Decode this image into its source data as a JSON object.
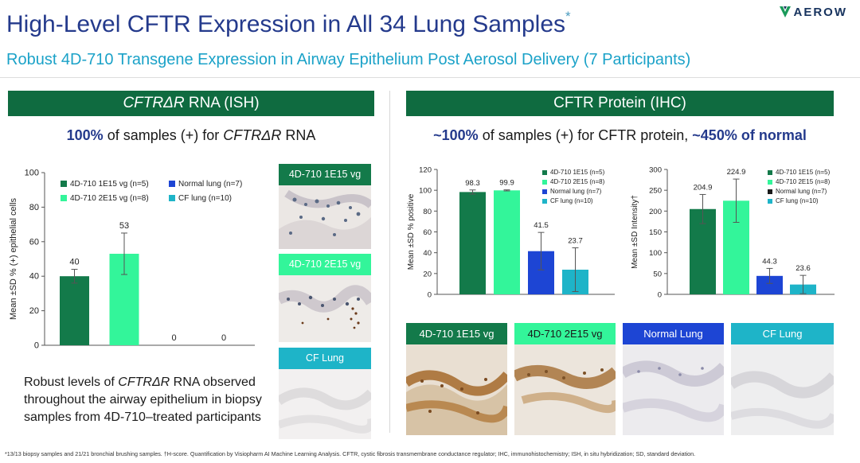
{
  "header": {
    "title": "High-Level CFTR Expression in All 34 Lung Samples",
    "title_mark": "*",
    "subtitle": "Robust 4D-710 Transgene Expression in Airway Epithelium Post Aerosol Delivery (7 Participants)",
    "logo_text": "AEROW"
  },
  "ish": {
    "header_italic": "CFTRΔR",
    "header_rest": " RNA (ISH)",
    "stat_pct": "100%",
    "stat_mid": " of samples (+) for ",
    "stat_italic": "CFTRΔR",
    "stat_end": " RNA",
    "desc_1": "Robust levels of ",
    "desc_italic": "CFTRΔR",
    "desc_2": " RNA observed throughout the airway epithelium in biopsy samples from 4D-710–treated participants",
    "tiles": [
      "4D-710 1E15 vg",
      "4D-710 2E15 vg",
      "CF Lung"
    ]
  },
  "ihc": {
    "header": "CFTR Protein (IHC)",
    "stat_pct": "~100%",
    "stat_mid": " of samples (+) for CFTR protein, ",
    "stat_hl2": "~450% of normal",
    "tiles": [
      "4D-710 1E15 vg",
      "4D-710 2E15 vg",
      "Normal Lung",
      "CF Lung"
    ]
  },
  "colors": {
    "dark_green": "#137a4a",
    "light_green": "#33f59a",
    "blue": "#1d45d4",
    "teal": "#1eb4c8",
    "header_green": "#0f6b40",
    "title_blue": "#243a8c",
    "subtitle_teal": "#1ba2c8"
  },
  "chart_data": [
    {
      "type": "bar",
      "ylabel": "Mean ±SD % (+) epithelial cells",
      "ylim": [
        0,
        100
      ],
      "yticks": [
        0,
        20,
        40,
        60,
        80,
        100
      ],
      "legend": [
        "4D-710 1E15 vg (n=5)",
        "Normal lung (n=7)",
        "4D-710 2E15 vg (n=8)",
        "CF lung (n=10)"
      ],
      "categories": [
        "4D-710 1E15 vg (n=5)",
        "4D-710 2E15 vg (n=8)",
        "Normal lung (n=7)",
        "CF lung (n=10)"
      ],
      "values": [
        40,
        53,
        0,
        0
      ],
      "labels": [
        "40",
        "53",
        "0",
        "0"
      ],
      "errors": [
        4,
        12,
        0,
        0
      ]
    },
    {
      "type": "bar",
      "ylabel": "Mean ±SD % positive",
      "ylim": [
        0,
        120
      ],
      "yticks": [
        0,
        20,
        40,
        60,
        80,
        100,
        120
      ],
      "legend": [
        "4D-710 1E15 (n=5)",
        "4D-710 2E15 (n=8)",
        "Normal lung (n=7)",
        "CF lung (n=10)"
      ],
      "categories": [
        "4D-710 1E15 (n=5)",
        "4D-710 2E15 (n=8)",
        "Normal lung (n=7)",
        "CF lung (n=10)"
      ],
      "values": [
        98.3,
        99.9,
        41.5,
        23.7
      ],
      "labels": [
        "98.3",
        "99.9",
        "41.5",
        "23.7"
      ],
      "errors": [
        2,
        0.5,
        18,
        21
      ]
    },
    {
      "type": "bar",
      "ylabel": "Mean ±SD Intensity†",
      "ylim": [
        0,
        300
      ],
      "yticks": [
        0,
        50,
        100,
        150,
        200,
        250,
        300
      ],
      "legend": [
        "4D-710 1E15 (n=5)",
        "4D-710 2E15 (n=8)",
        "Normal lung (n=7)",
        "CF lung (n=10)"
      ],
      "categories": [
        "4D-710 1E15 (n=5)",
        "4D-710 2E15 (n=8)",
        "Normal lung (n=7)",
        "CF lung (n=10)"
      ],
      "values": [
        204.9,
        224.9,
        44.3,
        23.6
      ],
      "labels": [
        "204.9",
        "224.9",
        "44.3",
        "23.6"
      ],
      "errors": [
        35,
        52,
        18,
        22
      ]
    }
  ],
  "footnote": "*13/13 biopsy samples and 21/21 bronchial brushing samples. †H-score. Quantification by Visiopharm AI Machine Learning Analysis. CFTR, cystic fibrosis transmembrane conductance regulator; IHC, immunohistochemistry; ISH, in situ hybridization; SD, standard deviation."
}
